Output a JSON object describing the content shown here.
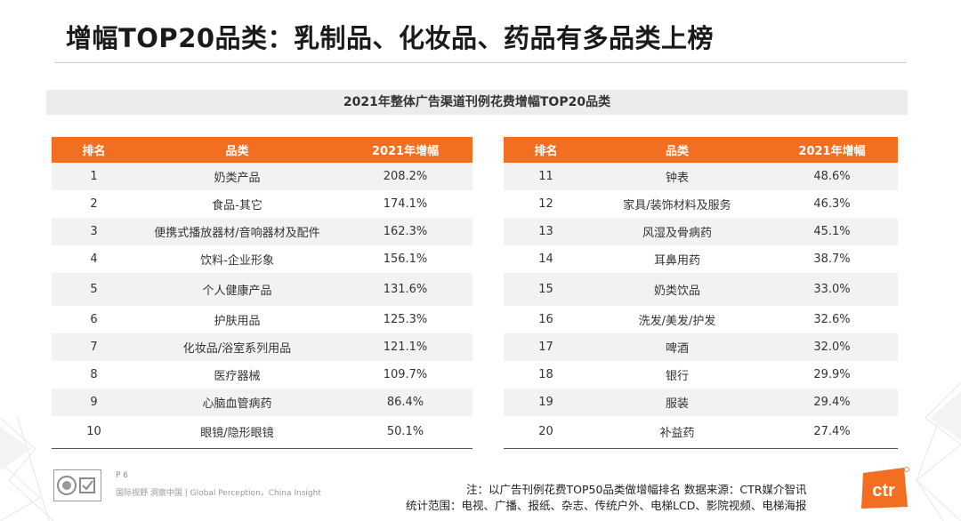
{
  "title": "增幅TOP20品类：乳制品、化妆品、药品有多品类上榜",
  "table_caption": "2021年整体广告渠道刊例花费增幅TOP20品类",
  "headers": {
    "rank": "排名",
    "category": "品类",
    "growth": "2021年增幅"
  },
  "left_rows": [
    {
      "rank": "1",
      "category": "奶类产品",
      "growth": "208.2%"
    },
    {
      "rank": "2",
      "category": "食品-其它",
      "growth": "174.1%"
    },
    {
      "rank": "3",
      "category": "便携式播放器材/音响器材及配件",
      "growth": "162.3%"
    },
    {
      "rank": "4",
      "category": "饮料-企业形象",
      "growth": "156.1%"
    },
    {
      "rank": "5",
      "category": "个人健康产品",
      "growth": "131.6%"
    },
    {
      "rank": "6",
      "category": "护肤用品",
      "growth": "125.3%"
    },
    {
      "rank": "7",
      "category": "化妆品/浴室系列用品",
      "growth": "121.1%"
    },
    {
      "rank": "8",
      "category": "医疗器械",
      "growth": "109.7%"
    },
    {
      "rank": "9",
      "category": "心脑血管病药",
      "growth": "86.4%"
    },
    {
      "rank": "10",
      "category": "眼镜/隐形眼镜",
      "growth": "50.1%"
    }
  ],
  "right_rows": [
    {
      "rank": "11",
      "category": "钟表",
      "growth": "48.6%"
    },
    {
      "rank": "12",
      "category": "家具/装饰材料及服务",
      "growth": "46.3%"
    },
    {
      "rank": "13",
      "category": "风湿及骨病药",
      "growth": "45.1%"
    },
    {
      "rank": "14",
      "category": "耳鼻用药",
      "growth": "38.7%"
    },
    {
      "rank": "15",
      "category": "奶类饮品",
      "growth": "33.0%"
    },
    {
      "rank": "16",
      "category": "洗发/美发/护发",
      "growth": "32.6%"
    },
    {
      "rank": "17",
      "category": "啤酒",
      "growth": "32.0%"
    },
    {
      "rank": "18",
      "category": "银行",
      "growth": "29.9%"
    },
    {
      "rank": "19",
      "category": "服装",
      "growth": "29.4%"
    },
    {
      "rank": "20",
      "category": "补益药",
      "growth": "27.4%"
    }
  ],
  "footer": {
    "page": "P 6",
    "tagline": "国际视野 洞察中国 | Global Perception，China Insight",
    "note_line1": "注：以广告刊例花费TOP50品类做增幅排名   数据来源：CTR媒介智讯",
    "note_line2": "统计范围：电视、广播、报纸、杂志、传统户外、电梯LCD、影院视频、电梯海报",
    "logo_text": "ctr"
  },
  "colors": {
    "accent": "#f26f21",
    "header_text": "#ffffff",
    "row_alt": "#f2f2f2"
  }
}
